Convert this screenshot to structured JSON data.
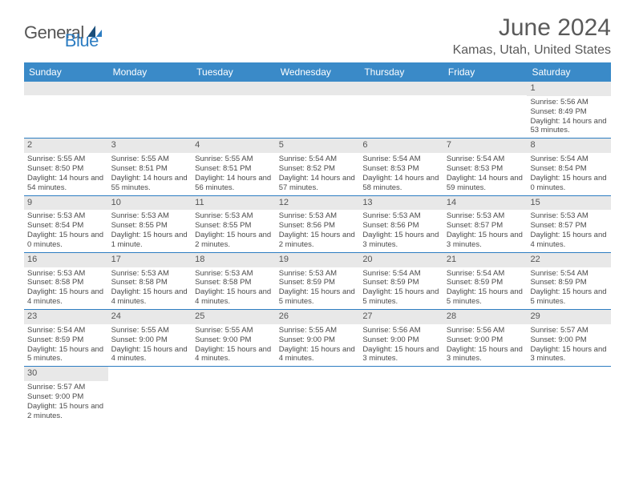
{
  "logo": {
    "word1": "General",
    "word2": "Blue"
  },
  "title": "June 2024",
  "location": "Kamas, Utah, United States",
  "colors": {
    "header_bg": "#3a8ac8",
    "header_text": "#ffffff",
    "divider": "#2d7dc2",
    "daynum_bg": "#e8e8e8",
    "text": "#4a4a4a",
    "title_text": "#5a5a5a",
    "logo_blue": "#2d7dc2",
    "logo_gray": "#555555"
  },
  "typography": {
    "title_fontsize": 30,
    "location_fontsize": 16,
    "weekday_fontsize": 12,
    "daynum_fontsize": 11,
    "body_fontsize": 9.5
  },
  "weekdays": [
    "Sunday",
    "Monday",
    "Tuesday",
    "Wednesday",
    "Thursday",
    "Friday",
    "Saturday"
  ],
  "weeks": [
    [
      null,
      null,
      null,
      null,
      null,
      null,
      {
        "n": "1",
        "sr": "Sunrise: 5:56 AM",
        "ss": "Sunset: 8:49 PM",
        "dl": "Daylight: 14 hours and 53 minutes."
      }
    ],
    [
      {
        "n": "2",
        "sr": "Sunrise: 5:55 AM",
        "ss": "Sunset: 8:50 PM",
        "dl": "Daylight: 14 hours and 54 minutes."
      },
      {
        "n": "3",
        "sr": "Sunrise: 5:55 AM",
        "ss": "Sunset: 8:51 PM",
        "dl": "Daylight: 14 hours and 55 minutes."
      },
      {
        "n": "4",
        "sr": "Sunrise: 5:55 AM",
        "ss": "Sunset: 8:51 PM",
        "dl": "Daylight: 14 hours and 56 minutes."
      },
      {
        "n": "5",
        "sr": "Sunrise: 5:54 AM",
        "ss": "Sunset: 8:52 PM",
        "dl": "Daylight: 14 hours and 57 minutes."
      },
      {
        "n": "6",
        "sr": "Sunrise: 5:54 AM",
        "ss": "Sunset: 8:53 PM",
        "dl": "Daylight: 14 hours and 58 minutes."
      },
      {
        "n": "7",
        "sr": "Sunrise: 5:54 AM",
        "ss": "Sunset: 8:53 PM",
        "dl": "Daylight: 14 hours and 59 minutes."
      },
      {
        "n": "8",
        "sr": "Sunrise: 5:54 AM",
        "ss": "Sunset: 8:54 PM",
        "dl": "Daylight: 15 hours and 0 minutes."
      }
    ],
    [
      {
        "n": "9",
        "sr": "Sunrise: 5:53 AM",
        "ss": "Sunset: 8:54 PM",
        "dl": "Daylight: 15 hours and 0 minutes."
      },
      {
        "n": "10",
        "sr": "Sunrise: 5:53 AM",
        "ss": "Sunset: 8:55 PM",
        "dl": "Daylight: 15 hours and 1 minute."
      },
      {
        "n": "11",
        "sr": "Sunrise: 5:53 AM",
        "ss": "Sunset: 8:55 PM",
        "dl": "Daylight: 15 hours and 2 minutes."
      },
      {
        "n": "12",
        "sr": "Sunrise: 5:53 AM",
        "ss": "Sunset: 8:56 PM",
        "dl": "Daylight: 15 hours and 2 minutes."
      },
      {
        "n": "13",
        "sr": "Sunrise: 5:53 AM",
        "ss": "Sunset: 8:56 PM",
        "dl": "Daylight: 15 hours and 3 minutes."
      },
      {
        "n": "14",
        "sr": "Sunrise: 5:53 AM",
        "ss": "Sunset: 8:57 PM",
        "dl": "Daylight: 15 hours and 3 minutes."
      },
      {
        "n": "15",
        "sr": "Sunrise: 5:53 AM",
        "ss": "Sunset: 8:57 PM",
        "dl": "Daylight: 15 hours and 4 minutes."
      }
    ],
    [
      {
        "n": "16",
        "sr": "Sunrise: 5:53 AM",
        "ss": "Sunset: 8:58 PM",
        "dl": "Daylight: 15 hours and 4 minutes."
      },
      {
        "n": "17",
        "sr": "Sunrise: 5:53 AM",
        "ss": "Sunset: 8:58 PM",
        "dl": "Daylight: 15 hours and 4 minutes."
      },
      {
        "n": "18",
        "sr": "Sunrise: 5:53 AM",
        "ss": "Sunset: 8:58 PM",
        "dl": "Daylight: 15 hours and 4 minutes."
      },
      {
        "n": "19",
        "sr": "Sunrise: 5:53 AM",
        "ss": "Sunset: 8:59 PM",
        "dl": "Daylight: 15 hours and 5 minutes."
      },
      {
        "n": "20",
        "sr": "Sunrise: 5:54 AM",
        "ss": "Sunset: 8:59 PM",
        "dl": "Daylight: 15 hours and 5 minutes."
      },
      {
        "n": "21",
        "sr": "Sunrise: 5:54 AM",
        "ss": "Sunset: 8:59 PM",
        "dl": "Daylight: 15 hours and 5 minutes."
      },
      {
        "n": "22",
        "sr": "Sunrise: 5:54 AM",
        "ss": "Sunset: 8:59 PM",
        "dl": "Daylight: 15 hours and 5 minutes."
      }
    ],
    [
      {
        "n": "23",
        "sr": "Sunrise: 5:54 AM",
        "ss": "Sunset: 8:59 PM",
        "dl": "Daylight: 15 hours and 5 minutes."
      },
      {
        "n": "24",
        "sr": "Sunrise: 5:55 AM",
        "ss": "Sunset: 9:00 PM",
        "dl": "Daylight: 15 hours and 4 minutes."
      },
      {
        "n": "25",
        "sr": "Sunrise: 5:55 AM",
        "ss": "Sunset: 9:00 PM",
        "dl": "Daylight: 15 hours and 4 minutes."
      },
      {
        "n": "26",
        "sr": "Sunrise: 5:55 AM",
        "ss": "Sunset: 9:00 PM",
        "dl": "Daylight: 15 hours and 4 minutes."
      },
      {
        "n": "27",
        "sr": "Sunrise: 5:56 AM",
        "ss": "Sunset: 9:00 PM",
        "dl": "Daylight: 15 hours and 3 minutes."
      },
      {
        "n": "28",
        "sr": "Sunrise: 5:56 AM",
        "ss": "Sunset: 9:00 PM",
        "dl": "Daylight: 15 hours and 3 minutes."
      },
      {
        "n": "29",
        "sr": "Sunrise: 5:57 AM",
        "ss": "Sunset: 9:00 PM",
        "dl": "Daylight: 15 hours and 3 minutes."
      }
    ],
    [
      {
        "n": "30",
        "sr": "Sunrise: 5:57 AM",
        "ss": "Sunset: 9:00 PM",
        "dl": "Daylight: 15 hours and 2 minutes."
      },
      null,
      null,
      null,
      null,
      null,
      null
    ]
  ]
}
